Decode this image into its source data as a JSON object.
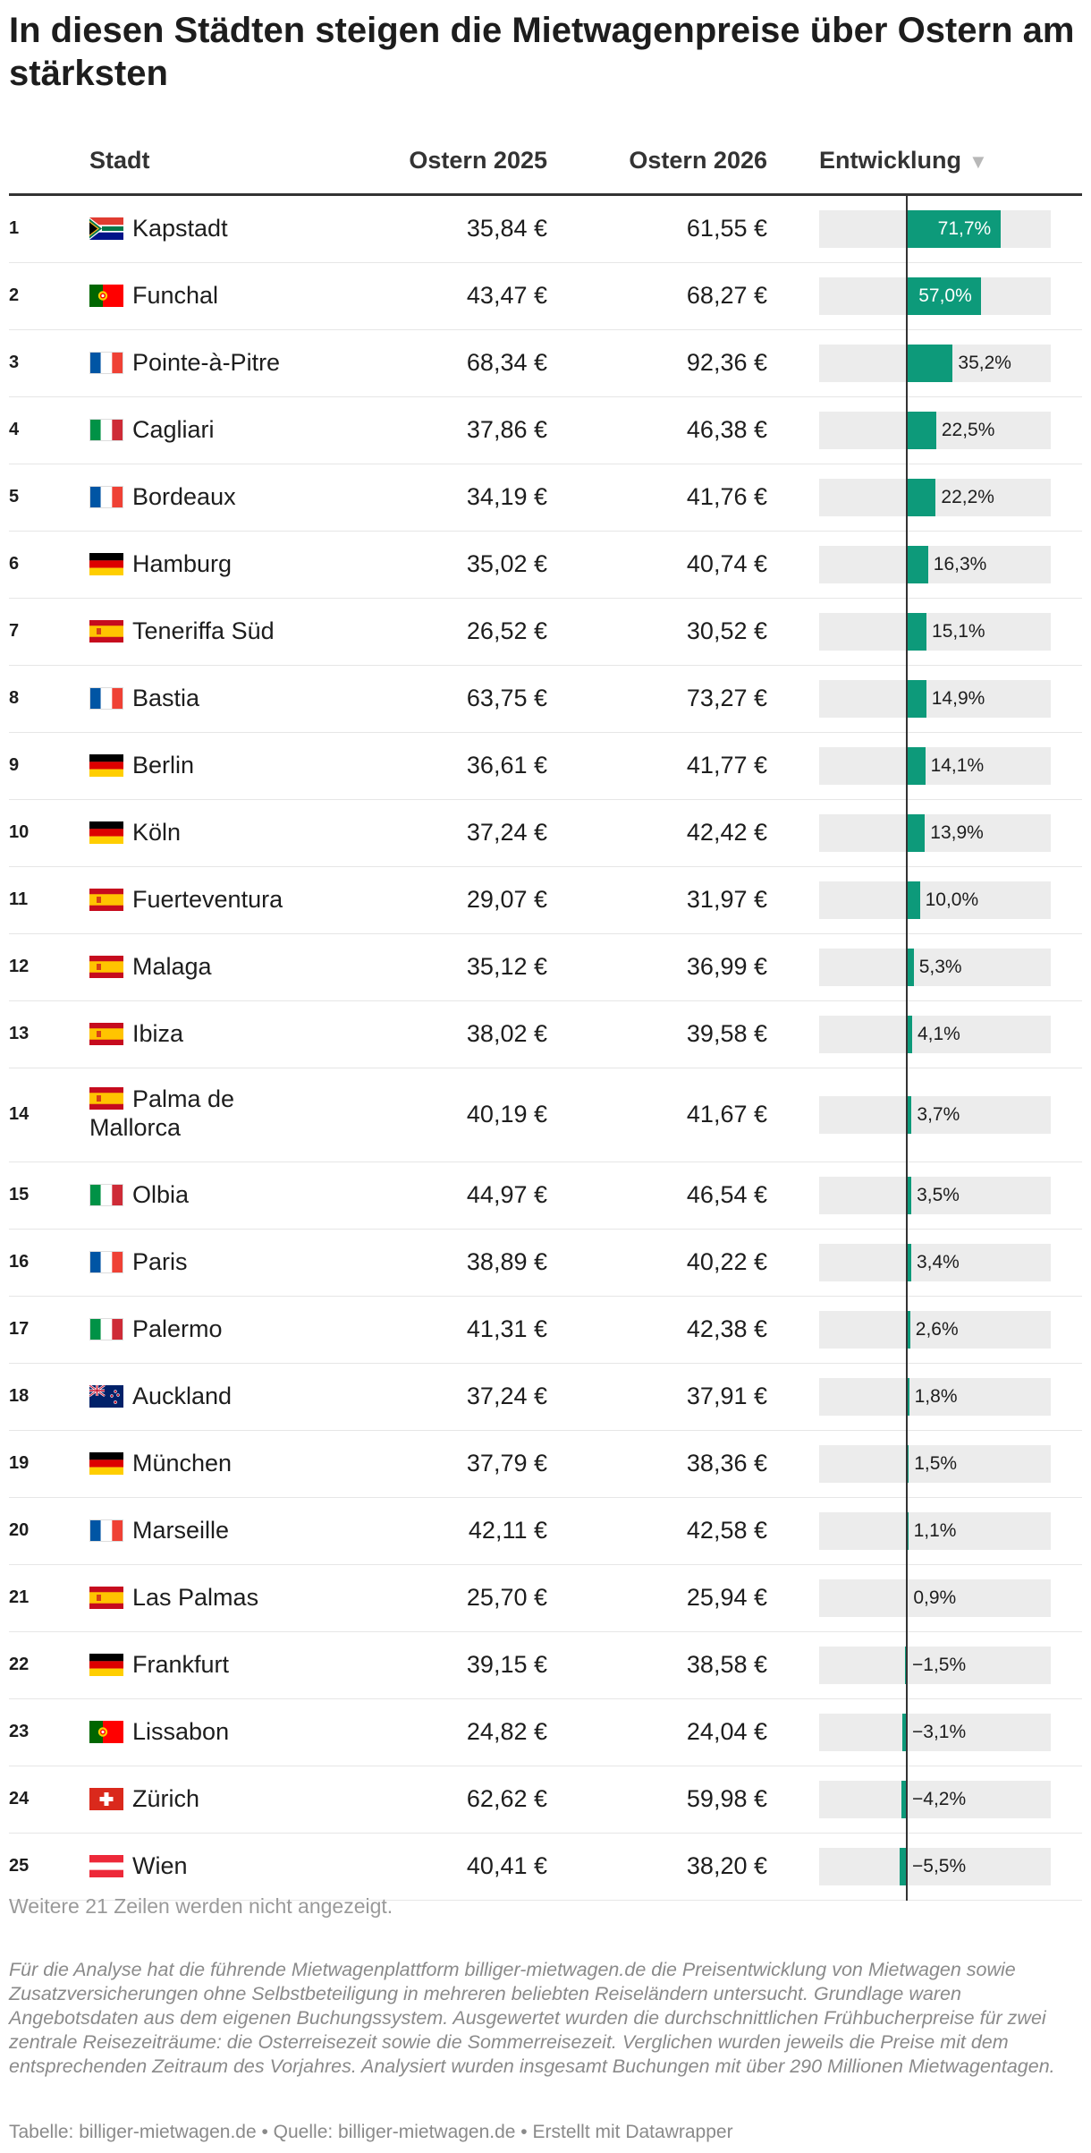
{
  "title": "In diesen Städten steigen die Mietwagenpreise über Ostern am stärksten",
  "headers": {
    "city": "Stadt",
    "y2025": "Ostern 2025",
    "y2026": "Ostern 2026",
    "change": "Entwicklung",
    "sort_icon": "▼"
  },
  "colors": {
    "bar": "#0d9a7a",
    "bar_bg": "#ececec"
  },
  "chart_data": {
    "type": "table",
    "columns": [
      "",
      "Stadt",
      "Ostern 2025",
      "Ostern 2026",
      "Entwicklung"
    ],
    "value_range": [
      -5.5,
      71.7
    ],
    "rows": [
      {
        "rank": "1",
        "city": "Kapstadt",
        "flag": "za",
        "y2025": "35,84 €",
        "y2026": "61,55 €",
        "change": 71.7,
        "change_label": "71,7%"
      },
      {
        "rank": "2",
        "city": "Funchal",
        "flag": "pt",
        "y2025": "43,47 €",
        "y2026": "68,27 €",
        "change": 57.0,
        "change_label": "57,0%"
      },
      {
        "rank": "3",
        "city": "Pointe-à-Pitre",
        "flag": "fr",
        "y2025": "68,34 €",
        "y2026": "92,36 €",
        "change": 35.2,
        "change_label": "35,2%"
      },
      {
        "rank": "4",
        "city": "Cagliari",
        "flag": "it",
        "y2025": "37,86 €",
        "y2026": "46,38 €",
        "change": 22.5,
        "change_label": "22,5%"
      },
      {
        "rank": "5",
        "city": "Bordeaux",
        "flag": "fr",
        "y2025": "34,19 €",
        "y2026": "41,76 €",
        "change": 22.2,
        "change_label": "22,2%"
      },
      {
        "rank": "6",
        "city": "Hamburg",
        "flag": "de",
        "y2025": "35,02 €",
        "y2026": "40,74 €",
        "change": 16.3,
        "change_label": "16,3%"
      },
      {
        "rank": "7",
        "city": "Teneriffa Süd",
        "flag": "es",
        "y2025": "26,52 €",
        "y2026": "30,52 €",
        "change": 15.1,
        "change_label": "15,1%"
      },
      {
        "rank": "8",
        "city": "Bastia",
        "flag": "fr",
        "y2025": "63,75 €",
        "y2026": "73,27 €",
        "change": 14.9,
        "change_label": "14,9%"
      },
      {
        "rank": "9",
        "city": "Berlin",
        "flag": "de",
        "y2025": "36,61 €",
        "y2026": "41,77 €",
        "change": 14.1,
        "change_label": "14,1%"
      },
      {
        "rank": "10",
        "city": "Köln",
        "flag": "de",
        "y2025": "37,24 €",
        "y2026": "42,42 €",
        "change": 13.9,
        "change_label": "13,9%"
      },
      {
        "rank": "11",
        "city": "Fuerteventura",
        "flag": "es",
        "y2025": "29,07 €",
        "y2026": "31,97 €",
        "change": 10.0,
        "change_label": "10,0%"
      },
      {
        "rank": "12",
        "city": "Malaga",
        "flag": "es",
        "y2025": "35,12 €",
        "y2026": "36,99 €",
        "change": 5.3,
        "change_label": "5,3%"
      },
      {
        "rank": "13",
        "city": "Ibiza",
        "flag": "es",
        "y2025": "38,02 €",
        "y2026": "39,58 €",
        "change": 4.1,
        "change_label": "4,1%"
      },
      {
        "rank": "14",
        "city": "Palma de Mallorca",
        "flag": "es",
        "y2025": "40,19 €",
        "y2026": "41,67 €",
        "change": 3.7,
        "change_label": "3,7%"
      },
      {
        "rank": "15",
        "city": "Olbia",
        "flag": "it",
        "y2025": "44,97 €",
        "y2026": "46,54 €",
        "change": 3.5,
        "change_label": "3,5%"
      },
      {
        "rank": "16",
        "city": "Paris",
        "flag": "fr",
        "y2025": "38,89 €",
        "y2026": "40,22 €",
        "change": 3.4,
        "change_label": "3,4%"
      },
      {
        "rank": "17",
        "city": "Palermo",
        "flag": "it",
        "y2025": "41,31 €",
        "y2026": "42,38 €",
        "change": 2.6,
        "change_label": "2,6%"
      },
      {
        "rank": "18",
        "city": "Auckland",
        "flag": "nz",
        "y2025": "37,24 €",
        "y2026": "37,91 €",
        "change": 1.8,
        "change_label": "1,8%"
      },
      {
        "rank": "19",
        "city": "München",
        "flag": "de",
        "y2025": "37,79 €",
        "y2026": "38,36 €",
        "change": 1.5,
        "change_label": "1,5%"
      },
      {
        "rank": "20",
        "city": "Marseille",
        "flag": "fr",
        "y2025": "42,11 €",
        "y2026": "42,58 €",
        "change": 1.1,
        "change_label": "1,1%"
      },
      {
        "rank": "21",
        "city": "Las Palmas",
        "flag": "es",
        "y2025": "25,70 €",
        "y2026": "25,94 €",
        "change": 0.9,
        "change_label": "0,9%"
      },
      {
        "rank": "22",
        "city": "Frankfurt",
        "flag": "de",
        "y2025": "39,15 €",
        "y2026": "38,58 €",
        "change": -1.5,
        "change_label": "−1,5%"
      },
      {
        "rank": "23",
        "city": "Lissabon",
        "flag": "pt",
        "y2025": "24,82 €",
        "y2026": "24,04 €",
        "change": -3.1,
        "change_label": "−3,1%"
      },
      {
        "rank": "24",
        "city": "Zürich",
        "flag": "ch",
        "y2025": "62,62 €",
        "y2026": "59,98 €",
        "change": -4.2,
        "change_label": "−4,2%"
      },
      {
        "rank": "25",
        "city": "Wien",
        "flag": "at",
        "y2025": "40,41 €",
        "y2026": "38,20 €",
        "change": -5.5,
        "change_label": "−5,5%"
      }
    ]
  },
  "more_rows": "Weitere 21 Zeilen werden nicht angezeigt.",
  "notes": "Für die Analyse hat die führende Mietwagenplattform billiger-mietwagen.de die Preisentwicklung von Mietwagen sowie Zusatzversicherungen ohne Selbstbeteiligung in mehreren beliebten Reiseländern untersucht. Grundlage waren Angebotsdaten aus dem eigenen Buchungssystem. Ausgewertet wurden die durchschnittlichen Frühbucherpreise für zwei zentrale Reisezeiträume: die Osterreisezeit sowie die Sommerreisezeit. Verglichen wurden jeweils die Preise mit dem entsprechenden Zeitraum des Vorjahres. Analysiert wurden insgesamt Buchungen mit über 290 Millionen Mietwagentagen.",
  "footer": "Tabelle: billiger-mietwagen.de • Quelle: billiger-mietwagen.de • Erstellt mit Datawrapper"
}
